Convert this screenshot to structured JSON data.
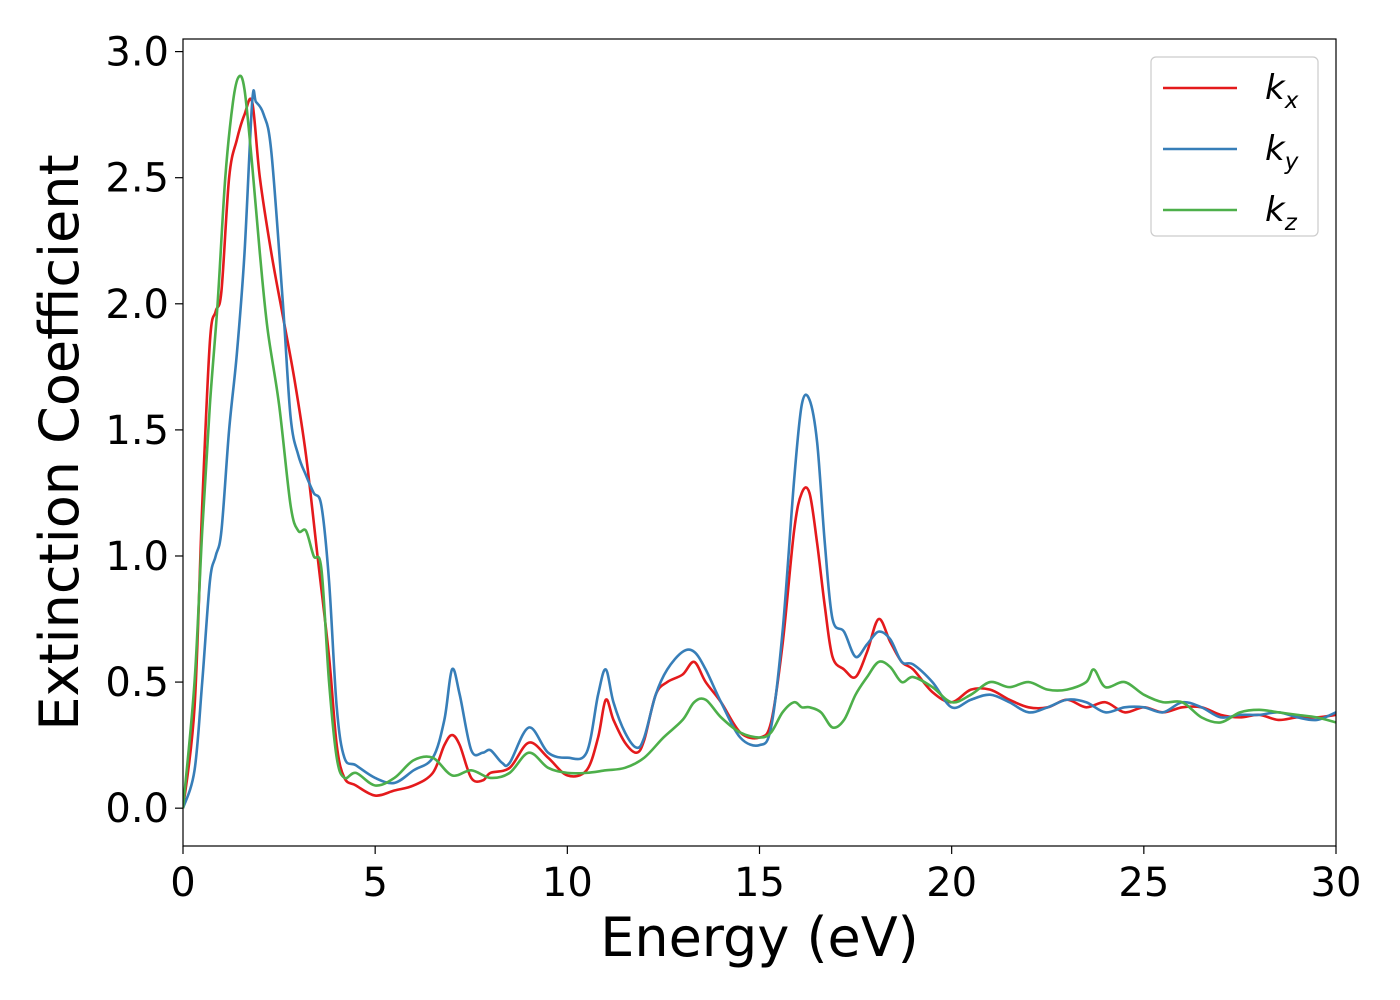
{
  "chart_data": {
    "type": "line",
    "title": "",
    "xlabel": "Energy (eV)",
    "ylabel": "Extinction Coefficient",
    "xlim": [
      0,
      30
    ],
    "ylim": [
      -0.15,
      3.05
    ],
    "xticks": [
      0,
      5,
      10,
      15,
      20,
      25,
      30
    ],
    "xtick_labels": [
      "0",
      "5",
      "10",
      "15",
      "20",
      "25",
      "30"
    ],
    "yticks": [
      0.0,
      0.5,
      1.0,
      1.5,
      2.0,
      2.5,
      3.0
    ],
    "ytick_labels": [
      "0.0",
      "0.5",
      "1.0",
      "1.5",
      "2.0",
      "2.5",
      "3.0"
    ],
    "grid": false,
    "legend_position": "top-right",
    "series": [
      {
        "name": "kx",
        "symbol": "k",
        "subscript": "x",
        "color": "#e41a1c",
        "x": [
          0,
          0.3,
          0.5,
          0.7,
          0.85,
          1.0,
          1.2,
          1.4,
          1.6,
          1.8,
          2.0,
          2.3,
          2.6,
          2.9,
          3.2,
          3.5,
          3.8,
          4.0,
          4.2,
          4.5,
          5.0,
          5.5,
          6.0,
          6.5,
          6.8,
          7.0,
          7.2,
          7.5,
          7.8,
          8.0,
          8.5,
          9.0,
          9.5,
          10.0,
          10.5,
          10.8,
          11.0,
          11.2,
          11.5,
          11.8,
          12.0,
          12.3,
          12.6,
          13.0,
          13.3,
          13.6,
          14.0,
          14.5,
          15.0,
          15.3,
          15.6,
          15.9,
          16.1,
          16.3,
          16.5,
          16.7,
          16.9,
          17.2,
          17.5,
          17.8,
          18.1,
          18.4,
          18.7,
          19.0,
          19.5,
          20.0,
          20.5,
          21.0,
          21.5,
          22.0,
          22.5,
          23.0,
          23.5,
          24.0,
          24.5,
          25.0,
          25.5,
          26.0,
          26.5,
          27.0,
          27.5,
          28.0,
          28.5,
          29.0,
          29.5,
          30.0
        ],
        "y": [
          0.0,
          0.4,
          1.2,
          1.85,
          1.97,
          2.05,
          2.5,
          2.65,
          2.75,
          2.8,
          2.5,
          2.2,
          1.95,
          1.7,
          1.4,
          1.0,
          0.6,
          0.25,
          0.12,
          0.09,
          0.05,
          0.07,
          0.09,
          0.14,
          0.25,
          0.29,
          0.25,
          0.12,
          0.11,
          0.14,
          0.16,
          0.26,
          0.2,
          0.13,
          0.15,
          0.28,
          0.43,
          0.35,
          0.26,
          0.22,
          0.27,
          0.45,
          0.5,
          0.53,
          0.58,
          0.5,
          0.42,
          0.3,
          0.28,
          0.34,
          0.65,
          1.1,
          1.25,
          1.25,
          1.05,
          0.8,
          0.6,
          0.55,
          0.52,
          0.62,
          0.75,
          0.66,
          0.58,
          0.55,
          0.46,
          0.42,
          0.47,
          0.47,
          0.43,
          0.4,
          0.4,
          0.43,
          0.4,
          0.42,
          0.38,
          0.4,
          0.38,
          0.4,
          0.4,
          0.37,
          0.36,
          0.37,
          0.35,
          0.36,
          0.36,
          0.37
        ]
      },
      {
        "name": "ky",
        "symbol": "k",
        "subscript": "y",
        "color": "#377eb8",
        "x": [
          0,
          0.3,
          0.5,
          0.7,
          0.85,
          1.0,
          1.2,
          1.4,
          1.6,
          1.8,
          1.9,
          2.1,
          2.3,
          2.6,
          2.8,
          3.0,
          3.2,
          3.4,
          3.6,
          3.8,
          4.0,
          4.2,
          4.5,
          5.0,
          5.5,
          6.0,
          6.5,
          6.8,
          7.0,
          7.2,
          7.5,
          7.8,
          8.0,
          8.3,
          8.5,
          9.0,
          9.5,
          10.0,
          10.5,
          10.8,
          11.0,
          11.2,
          11.5,
          11.8,
          12.0,
          12.3,
          12.6,
          13.0,
          13.3,
          13.6,
          14.0,
          14.5,
          15.0,
          15.3,
          15.6,
          15.9,
          16.1,
          16.3,
          16.5,
          16.7,
          16.9,
          17.2,
          17.5,
          17.8,
          18.1,
          18.4,
          18.7,
          19.0,
          19.5,
          20.0,
          20.5,
          21.0,
          21.5,
          22.0,
          22.5,
          23.0,
          23.5,
          24.0,
          24.5,
          25.0,
          25.5,
          26.0,
          26.5,
          27.0,
          27.5,
          28.0,
          28.5,
          29.0,
          29.5,
          30.0
        ],
        "y": [
          0.0,
          0.15,
          0.5,
          0.9,
          1.0,
          1.1,
          1.5,
          1.8,
          2.2,
          2.8,
          2.8,
          2.75,
          2.6,
          2.0,
          1.55,
          1.4,
          1.32,
          1.25,
          1.2,
          0.9,
          0.4,
          0.2,
          0.17,
          0.12,
          0.1,
          0.15,
          0.2,
          0.35,
          0.55,
          0.45,
          0.23,
          0.22,
          0.23,
          0.18,
          0.18,
          0.32,
          0.22,
          0.2,
          0.22,
          0.45,
          0.55,
          0.42,
          0.3,
          0.24,
          0.28,
          0.45,
          0.55,
          0.62,
          0.62,
          0.55,
          0.42,
          0.28,
          0.25,
          0.32,
          0.7,
          1.3,
          1.6,
          1.62,
          1.45,
          1.05,
          0.75,
          0.7,
          0.6,
          0.65,
          0.7,
          0.67,
          0.58,
          0.57,
          0.5,
          0.4,
          0.43,
          0.45,
          0.42,
          0.38,
          0.4,
          0.43,
          0.42,
          0.38,
          0.4,
          0.4,
          0.38,
          0.42,
          0.4,
          0.36,
          0.37,
          0.37,
          0.38,
          0.36,
          0.35,
          0.38
        ]
      },
      {
        "name": "kz",
        "symbol": "k",
        "subscript": "z",
        "color": "#4daf4a",
        "x": [
          0,
          0.3,
          0.5,
          0.7,
          0.9,
          1.1,
          1.3,
          1.45,
          1.6,
          1.8,
          2.0,
          2.2,
          2.5,
          2.8,
          3.0,
          3.2,
          3.4,
          3.6,
          3.8,
          4.0,
          4.2,
          4.5,
          5.0,
          5.5,
          6.0,
          6.5,
          7.0,
          7.5,
          8.0,
          8.5,
          9.0,
          9.5,
          10.0,
          10.5,
          11.0,
          11.5,
          12.0,
          12.5,
          13.0,
          13.3,
          13.6,
          14.0,
          14.5,
          15.0,
          15.3,
          15.6,
          15.9,
          16.1,
          16.3,
          16.6,
          16.9,
          17.2,
          17.5,
          17.8,
          18.1,
          18.4,
          18.7,
          19.0,
          19.5,
          20.0,
          20.5,
          21.0,
          21.5,
          22.0,
          22.5,
          23.0,
          23.5,
          23.7,
          24.0,
          24.5,
          25.0,
          25.5,
          26.0,
          26.5,
          27.0,
          27.5,
          28.0,
          28.5,
          29.0,
          29.5,
          30.0
        ],
        "y": [
          0.0,
          0.5,
          1.1,
          1.6,
          2.0,
          2.5,
          2.8,
          2.9,
          2.85,
          2.55,
          2.2,
          1.9,
          1.6,
          1.2,
          1.1,
          1.1,
          1.0,
          0.95,
          0.5,
          0.2,
          0.12,
          0.14,
          0.09,
          0.12,
          0.19,
          0.2,
          0.13,
          0.15,
          0.12,
          0.14,
          0.22,
          0.16,
          0.14,
          0.14,
          0.15,
          0.16,
          0.2,
          0.28,
          0.35,
          0.42,
          0.43,
          0.36,
          0.3,
          0.28,
          0.3,
          0.38,
          0.42,
          0.4,
          0.4,
          0.38,
          0.32,
          0.35,
          0.45,
          0.52,
          0.58,
          0.56,
          0.5,
          0.52,
          0.48,
          0.42,
          0.45,
          0.5,
          0.48,
          0.5,
          0.47,
          0.47,
          0.5,
          0.55,
          0.48,
          0.5,
          0.45,
          0.42,
          0.42,
          0.36,
          0.34,
          0.38,
          0.39,
          0.38,
          0.37,
          0.36,
          0.34
        ]
      }
    ]
  }
}
